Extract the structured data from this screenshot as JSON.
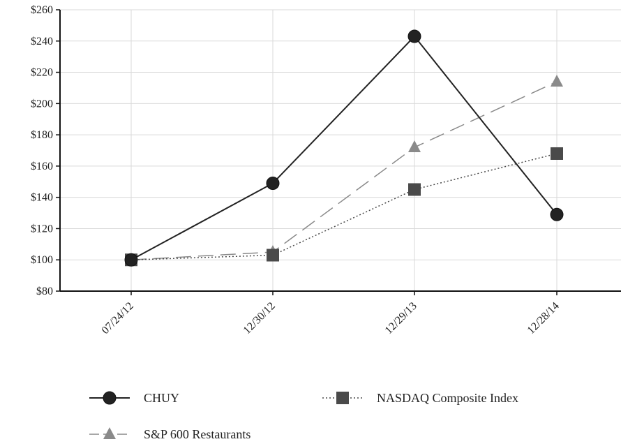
{
  "chart_data": {
    "type": "line",
    "title": "",
    "xlabel": "",
    "ylabel": "",
    "categories": [
      "07/24/12",
      "12/30/12",
      "12/29/13",
      "12/28/14"
    ],
    "ylim": [
      80,
      260
    ],
    "y_ticks": [
      "$80",
      "$100",
      "$120",
      "$140",
      "$160",
      "$180",
      "$200",
      "$220",
      "$240",
      "$260"
    ],
    "grid": "vertical",
    "legend_position": "bottom",
    "series": [
      {
        "name": "CHUY",
        "values": [
          100,
          149,
          243,
          129
        ],
        "color": "#222222",
        "marker": "circle",
        "line_style": "solid"
      },
      {
        "name": "NASDAQ Composite Index",
        "values": [
          100,
          103,
          145,
          168
        ],
        "color": "#4a4a4a",
        "marker": "square",
        "line_style": "dotted"
      },
      {
        "name": "S&P 600 Restaurants",
        "values": [
          100,
          105,
          172,
          214
        ],
        "color": "#8a8a8a",
        "marker": "triangle",
        "line_style": "dashed"
      }
    ]
  }
}
